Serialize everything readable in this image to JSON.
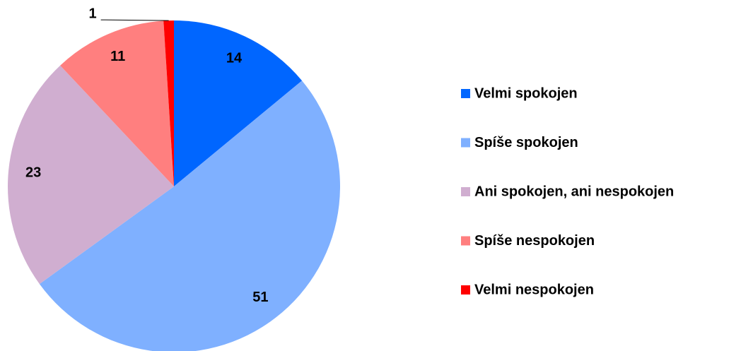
{
  "chart_data": {
    "type": "pie",
    "categories": [
      "Velmi spokojen",
      "Spíše spokojen",
      "Ani spokojen, ani nespokojen",
      "Spíše nespokojen",
      "Velmi nespokojen"
    ],
    "values": [
      14,
      51,
      23,
      11,
      1
    ],
    "colors": [
      "#0066ff",
      "#7fb0ff",
      "#d0aed0",
      "#ff7f7f",
      "#ff0000"
    ],
    "legend": "right"
  }
}
